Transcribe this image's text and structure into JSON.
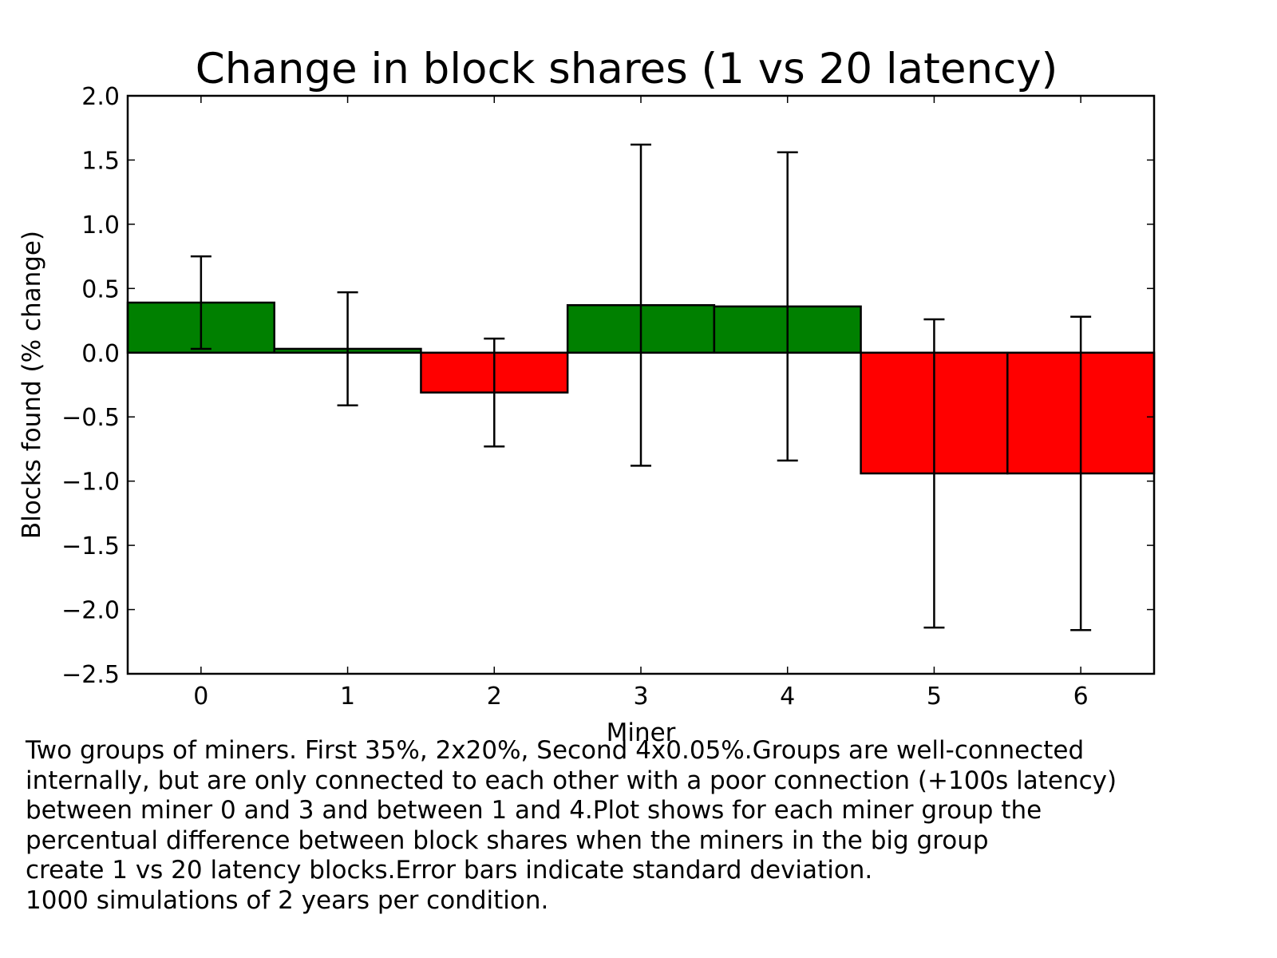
{
  "chart_data": {
    "type": "bar",
    "title": "Change in block shares (1 vs 20 latency)",
    "xlabel": "Miner",
    "ylabel": "Blocks found (% change)",
    "categories": [
      "0",
      "1",
      "2",
      "3",
      "4",
      "5",
      "6"
    ],
    "values": [
      0.39,
      0.03,
      -0.31,
      0.37,
      0.36,
      -0.94,
      -0.94
    ],
    "errors": [
      0.36,
      0.44,
      0.42,
      1.25,
      1.2,
      1.2,
      1.22
    ],
    "ylim": [
      -2.5,
      2.0
    ],
    "xlim": [
      -0.5,
      6.5
    ],
    "yticks": [
      "2.0",
      "1.5",
      "1.0",
      "0.5",
      "0.0",
      "−0.5",
      "−1.0",
      "−1.5",
      "−2.0",
      "−2.5"
    ],
    "ytick_values": [
      2.0,
      1.5,
      1.0,
      0.5,
      0.0,
      -0.5,
      -1.0,
      -1.5,
      -2.0,
      -2.5
    ],
    "positive_color": "#008000",
    "negative_color": "#ff0000",
    "grid": false,
    "legend": "none"
  },
  "caption": {
    "lines": [
      "Two groups of miners. First 35%, 2x20%, Second 4x0.05%.Groups are well-connected",
      "internally, but are only connected to each other with a poor connection (+100s latency)",
      "between miner 0 and 3 and between 1 and 4.Plot shows for each miner group the",
      "percentual difference between block shares when the miners in the big group",
      "create 1 vs 20 latency blocks.Error bars indicate standard deviation.",
      "1000 simulations of 2 years per condition."
    ]
  }
}
